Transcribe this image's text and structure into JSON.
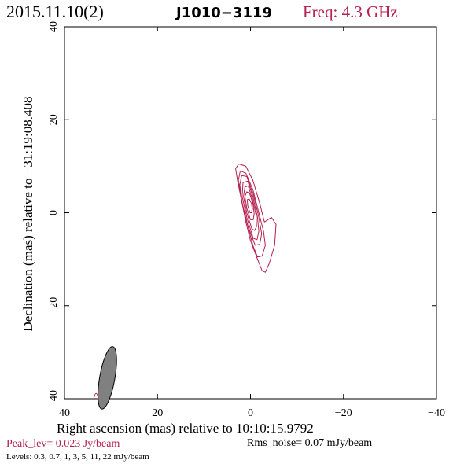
{
  "header": {
    "date": "2015.11.10(2)",
    "source": "J1010−3119",
    "freq": "Freq: 4.3 GHz"
  },
  "colors": {
    "accent": "#b5204f",
    "axes": "#000000",
    "beam_fill": "#808080"
  },
  "chart_data": {
    "type": "contour",
    "xlabel": "Right ascension (mas) relative to 10:10:15.9792",
    "ylabel": "Declination (mas) relative to −31:19:08.408",
    "xlim": [
      40,
      -40
    ],
    "ylim": [
      -40,
      40
    ],
    "xticks": [
      {
        "value": 40,
        "label": "40"
      },
      {
        "value": 20,
        "label": "20"
      },
      {
        "value": 0,
        "label": "0"
      },
      {
        "value": -20,
        "label": "−20"
      },
      {
        "value": -40,
        "label": "−40"
      }
    ],
    "yticks": [
      {
        "value": -40,
        "label": "−40"
      },
      {
        "value": -20,
        "label": "−20"
      },
      {
        "value": 0,
        "label": "0"
      },
      {
        "value": 20,
        "label": "20"
      },
      {
        "value": 40,
        "label": "40"
      }
    ],
    "contours": [
      {
        "level": 0.3,
        "points": [
          [
            -2.5,
            -12.5
          ],
          [
            -1.5,
            -10
          ],
          [
            0,
            -6
          ],
          [
            1,
            -2
          ],
          [
            2,
            3
          ],
          [
            2.8,
            7
          ],
          [
            3.2,
            9.5
          ],
          [
            2.5,
            10.5
          ],
          [
            1,
            10
          ],
          [
            -0.5,
            7
          ],
          [
            -2,
            2
          ],
          [
            -3,
            -2
          ],
          [
            -4.5,
            -1
          ],
          [
            -5.5,
            -2.5
          ],
          [
            -5.2,
            -7
          ],
          [
            -4,
            -11
          ],
          [
            -3.2,
            -12.8
          ]
        ]
      },
      {
        "level": 0.7,
        "points": [
          [
            -1.5,
            -9.5
          ],
          [
            -0.5,
            -7
          ],
          [
            0.8,
            -2
          ],
          [
            2,
            3
          ],
          [
            2.6,
            7
          ],
          [
            2.2,
            9
          ],
          [
            1,
            8.5
          ],
          [
            -0.5,
            5
          ],
          [
            -1.8,
            0
          ],
          [
            -2.8,
            -4
          ],
          [
            -3.2,
            -7
          ],
          [
            -2.5,
            -9.3
          ]
        ]
      },
      {
        "level": 1,
        "points": [
          [
            -1,
            -7
          ],
          [
            0.5,
            -3
          ],
          [
            1.8,
            2
          ],
          [
            2.3,
            6
          ],
          [
            1.9,
            8
          ],
          [
            0.8,
            7.8
          ],
          [
            -0.6,
            4
          ],
          [
            -1.8,
            -1
          ],
          [
            -2.4,
            -4.5
          ],
          [
            -2,
            -6.8
          ]
        ]
      },
      {
        "level": 3,
        "points": [
          [
            -0.6,
            -5.5
          ],
          [
            0.8,
            -1
          ],
          [
            1.8,
            3.5
          ],
          [
            1.6,
            6.5
          ],
          [
            0.6,
            6.8
          ],
          [
            -0.5,
            3.5
          ],
          [
            -1.5,
            -1
          ],
          [
            -1.8,
            -4
          ],
          [
            -1.4,
            -5.8
          ]
        ]
      },
      {
        "level": 5,
        "points": [
          [
            -0.3,
            -3.5
          ],
          [
            0.8,
            0
          ],
          [
            1.5,
            3.5
          ],
          [
            1.2,
            5.5
          ],
          [
            0.5,
            5.8
          ],
          [
            -0.4,
            3
          ],
          [
            -1.2,
            -0.5
          ],
          [
            -1.3,
            -3
          ],
          [
            -0.9,
            -3.8
          ]
        ]
      },
      {
        "level": 11,
        "points": [
          [
            0,
            -1.5
          ],
          [
            0.8,
            1
          ],
          [
            1.2,
            3.5
          ],
          [
            0.8,
            4.5
          ],
          [
            0.2,
            4.2
          ],
          [
            -0.5,
            2
          ],
          [
            -0.8,
            -0.2
          ],
          [
            -0.6,
            -1.5
          ]
        ]
      },
      {
        "level": 22,
        "points": [
          [
            0.1,
            0
          ],
          [
            0.6,
            1.5
          ],
          [
            0.7,
            2.8
          ],
          [
            0.3,
            3
          ],
          [
            -0.2,
            2
          ],
          [
            -0.4,
            0.8
          ],
          [
            -0.2,
            0
          ]
        ]
      }
    ],
    "beam": {
      "center": [
        30.8,
        -35.5
      ],
      "major_mas": 7.5,
      "minor_mas": 1.8,
      "pa_deg": 10
    },
    "peak": "Peak_lev=  0.023 Jy/beam",
    "noise": "Rms_noise= 0.07 mJy/beam",
    "levels": "Levels: 0.3, 0.7,   1,   3,   5,  11,  22 mJy/beam"
  }
}
